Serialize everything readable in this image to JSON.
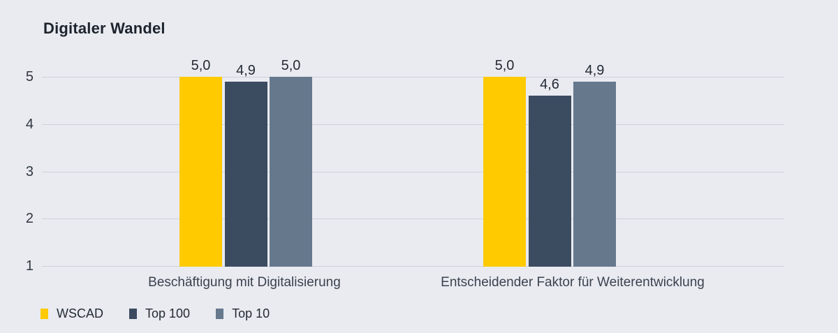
{
  "title": "Digitaler Wandel",
  "colors": {
    "background": "#E9EBF1",
    "gridline": "#CCD1DB",
    "title_text": "#1D242D",
    "axis_text": "#30363F",
    "value_label_text": "#242A33",
    "category_text": "#3B424D",
    "legend_text": "#242A33"
  },
  "chart_data": {
    "type": "bar",
    "title": "Digitaler Wandel",
    "categories": [
      "Beschäftigung mit Digitalisierung",
      "Entscheidender Faktor für Weiterentwicklung"
    ],
    "series": [
      {
        "name": "WSCAD",
        "color": "#FFCA00",
        "values": [
          5.0,
          5.0
        ],
        "labels": [
          "5,0",
          "5,0"
        ]
      },
      {
        "name": "Top 100",
        "color": "#3B4B60",
        "values": [
          4.9,
          4.6
        ],
        "labels": [
          "4,9",
          "4,6"
        ]
      },
      {
        "name": "Top 10",
        "color": "#66788C",
        "values": [
          5.0,
          4.9
        ],
        "labels": [
          "5,0",
          "4,9"
        ]
      }
    ],
    "y_ticks": [
      1,
      2,
      3,
      4,
      5
    ],
    "ylim": [
      1,
      5
    ],
    "xlabel": "",
    "ylabel": "",
    "grid": true,
    "value_format": "comma-decimal",
    "legend_position": "bottom-left"
  },
  "legend": {
    "items": [
      {
        "label": "WSCAD",
        "color": "#FFCA00"
      },
      {
        "label": "Top 100",
        "color": "#3B4B60"
      },
      {
        "label": "Top 10",
        "color": "#66788C"
      }
    ]
  }
}
